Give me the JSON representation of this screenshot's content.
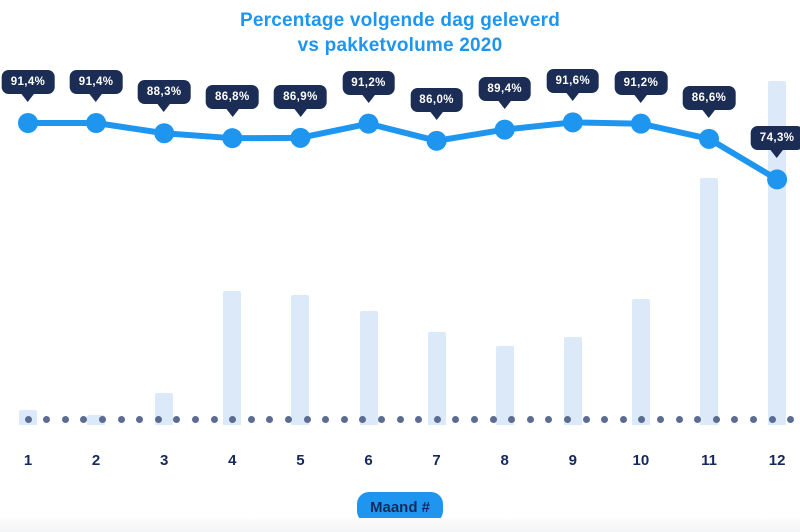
{
  "title": {
    "line1": "Percentage volgende dag geleverd",
    "line2": "vs pakketvolume 2020"
  },
  "colors": {
    "accent_blue": "#1e96f0",
    "tooltip_navy": "#1b2c55",
    "label_navy": "#16295b",
    "bar_fill": "#dbe9f8",
    "baseline_dot": "#5a6c91",
    "tooltip_text": "#ffffff"
  },
  "chart_data": {
    "type": "combo",
    "title": "Percentage volgende dag geleverd vs pakketvolume 2020",
    "xlabel": "Maand #",
    "ylabel": "",
    "categories": [
      "1",
      "2",
      "3",
      "4",
      "5",
      "6",
      "7",
      "8",
      "9",
      "10",
      "11",
      "12"
    ],
    "legend": "none",
    "grid": "off",
    "y_axis_visible": false,
    "series": [
      {
        "name": "Percentage volgende dag geleverd",
        "type": "line",
        "values": [
          91.4,
          91.4,
          88.3,
          86.8,
          86.9,
          91.2,
          86.0,
          89.4,
          91.6,
          91.2,
          86.6,
          74.3
        ],
        "labels": [
          "91,4%",
          "91,4%",
          "88,3%",
          "86,8%",
          "86,9%",
          "91,2%",
          "86,0%",
          "89,4%",
          "91,6%",
          "91,2%",
          "86,6%",
          "74,3%"
        ]
      },
      {
        "name": "Pakketvolume 2020",
        "type": "bar",
        "note": "no numeric axis shown; values are relative bar heights, max month = 100",
        "values_relative": [
          4.5,
          2.9,
          9.3,
          39.0,
          37.8,
          33.0,
          27.0,
          23.0,
          25.6,
          36.6,
          71.8,
          100.0
        ]
      }
    ]
  }
}
